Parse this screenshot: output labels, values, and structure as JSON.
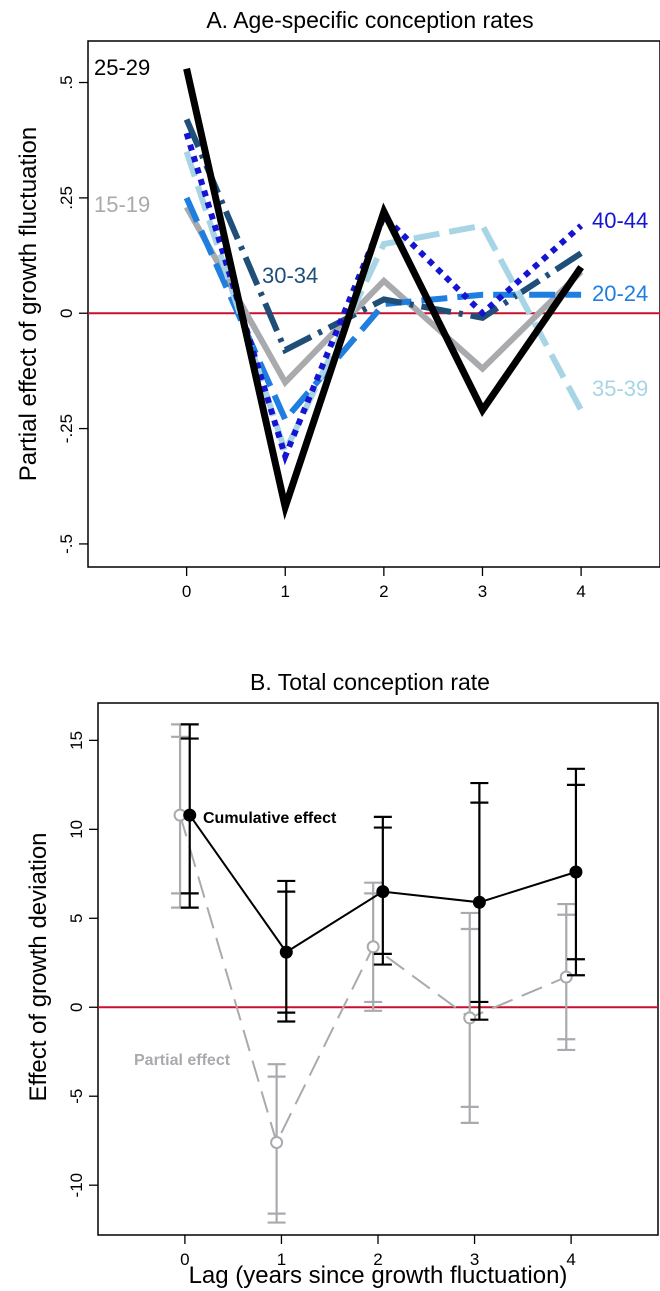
{
  "chart_data": [
    {
      "type": "line",
      "title": "A. Age-specific conception rates",
      "xlabel": "",
      "ylabel": "Partial effect of growth fluctuation",
      "x": [
        0,
        1,
        2,
        3,
        4
      ],
      "xticks": [
        "0",
        "1",
        "2",
        "3",
        "4"
      ],
      "yticks": [
        "-.5",
        "-.25",
        "0",
        ".25",
        ".5"
      ],
      "ytick_values": [
        -0.5,
        -0.25,
        0,
        0.25,
        0.5
      ],
      "xlim": [
        -1,
        4.8
      ],
      "ylim": [
        -0.55,
        0.59
      ],
      "reference_line": 0,
      "reference_color": "#c8102e",
      "legend": "inline-labels",
      "series": [
        {
          "name": "15-19",
          "values": [
            0.23,
            -0.15,
            0.07,
            -0.12,
            0.09
          ],
          "color": "#a9aaad",
          "dash": "solid"
        },
        {
          "name": "20-24",
          "values": [
            0.25,
            -0.23,
            0.02,
            0.04,
            0.04
          ],
          "color": "#1f7fe0",
          "dash": "longdash"
        },
        {
          "name": "30-34",
          "values": [
            0.42,
            -0.08,
            0.03,
            -0.01,
            0.13
          ],
          "color": "#1f4e79",
          "dash": "dashdot"
        },
        {
          "name": "35-39",
          "values": [
            0.35,
            -0.3,
            0.15,
            0.19,
            -0.21
          ],
          "color": "#a8d5e5",
          "dash": "longdash"
        },
        {
          "name": "40-44",
          "values": [
            0.39,
            -0.31,
            0.21,
            0.0,
            0.19
          ],
          "color": "#1414d2",
          "dash": "dot"
        },
        {
          "name": "25-29",
          "values": [
            0.53,
            -0.42,
            0.22,
            -0.21,
            0.1
          ],
          "color": "#000000",
          "dash": "solid"
        }
      ]
    },
    {
      "type": "line",
      "title": "B. Total conception rate",
      "xlabel": "Lag (years since growth fluctuation)",
      "ylabel": "Effect of growth deviation",
      "x": [
        0,
        1,
        2,
        3,
        4
      ],
      "xticks": [
        "0",
        "1",
        "2",
        "3",
        "4"
      ],
      "yticks": [
        "-10",
        "-5",
        "0",
        "5",
        "10",
        "15"
      ],
      "ytick_values": [
        -10,
        -5,
        0,
        5,
        10,
        15
      ],
      "xlim": [
        -0.9,
        4.9
      ],
      "ylim": [
        -12.8,
        17.1
      ],
      "reference_line": 0,
      "reference_color": "#c8102e",
      "series": [
        {
          "name": "Partial effect",
          "values": [
            10.8,
            -7.6,
            3.4,
            -0.6,
            1.7
          ],
          "ci_outer": [
            [
              5.6,
              15.9
            ],
            [
              -12.1,
              -3.2
            ],
            [
              -0.2,
              7.0
            ],
            [
              -6.5,
              5.3
            ],
            [
              -2.4,
              5.8
            ]
          ],
          "ci_inner": [
            [
              6.4,
              15.2
            ],
            [
              -11.6,
              -3.9
            ],
            [
              0.3,
              6.4
            ],
            [
              -5.6,
              4.4
            ],
            [
              -1.8,
              5.2
            ]
          ],
          "color": "#a9aaad",
          "dash": "longdash",
          "marker": "hollow-circle",
          "offset": -0.05
        },
        {
          "name": "Cumulative effect",
          "values": [
            10.8,
            3.1,
            6.5,
            5.9,
            7.6
          ],
          "ci_outer": [
            [
              5.6,
              15.9
            ],
            [
              -0.8,
              7.1
            ],
            [
              2.4,
              10.7
            ],
            [
              -0.7,
              12.6
            ],
            [
              1.8,
              13.4
            ]
          ],
          "ci_inner": [
            [
              6.4,
              15.1
            ],
            [
              -0.3,
              6.5
            ],
            [
              3.0,
              10.1
            ],
            [
              0.3,
              11.5
            ],
            [
              2.7,
              12.5
            ]
          ],
          "color": "#000000",
          "dash": "solid",
          "marker": "filled-circle",
          "offset": 0.05
        }
      ]
    }
  ]
}
